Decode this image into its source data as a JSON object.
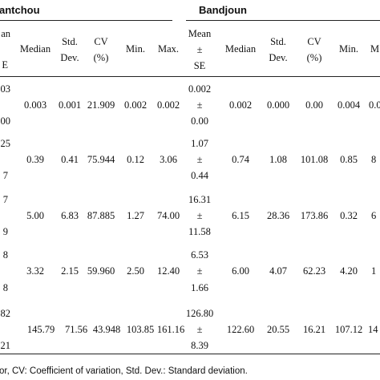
{
  "groups": {
    "left": "antchou",
    "right": "Bandjoun"
  },
  "headers": {
    "left_mean_top": "an",
    "left_mean_bottom": "E",
    "left_median": "Median",
    "left_std_top": "Std.",
    "left_std_bottom": "Dev.",
    "left_cv_top": "CV",
    "left_cv_bottom": "(%)",
    "left_min": "Min.",
    "left_max": "Max.",
    "right_mean_top": "Mean",
    "right_mean_mid": "±",
    "right_mean_bottom": "SE",
    "right_median": "Median",
    "right_std_top": "Std.",
    "right_std_bottom": "Dev.",
    "right_cv_top": "CV",
    "right_cv_bottom": "(%)",
    "right_min": "Min.",
    "right_max": "M"
  },
  "rows": [
    {
      "left_mean_top": "03",
      "left_mean_bottom": "00",
      "left_median": "0.003",
      "left_std": "0.001",
      "left_cv": "21.909",
      "left_min": "0.002",
      "left_max": "0.002",
      "right_mean_top": "0.002",
      "right_mean_mid": "±",
      "right_mean_bottom": "0.00",
      "right_median": "0.002",
      "right_std": "0.000",
      "right_cv": "0.00",
      "right_min": "0.004",
      "right_max": "0.0"
    },
    {
      "left_mean_top": "25",
      "left_mean_bottom": "7",
      "left_median": "0.39",
      "left_std": "0.41",
      "left_cv": "75.944",
      "left_min": "0.12",
      "left_max": "3.06",
      "right_mean_top": "1.07",
      "right_mean_mid": "±",
      "right_mean_bottom": "0.44",
      "right_median": "0.74",
      "right_std": "1.08",
      "right_cv": "101.08",
      "right_min": "0.85",
      "right_max": "8"
    },
    {
      "left_mean_top": "7",
      "left_mean_bottom": "9",
      "left_median": "5.00",
      "left_std": "6.83",
      "left_cv": "87.885",
      "left_min": "1.27",
      "left_max": "74.00",
      "right_mean_top": "16.31",
      "right_mean_mid": "±",
      "right_mean_bottom": "11.58",
      "right_median": "6.15",
      "right_std": "28.36",
      "right_cv": "173.86",
      "right_min": "0.32",
      "right_max": "6"
    },
    {
      "left_mean_top": "8",
      "left_mean_bottom": "8",
      "left_median": "3.32",
      "left_std": "2.15",
      "left_cv": "59.960",
      "left_min": "2.50",
      "left_max": "12.40",
      "right_mean_top": "6.53",
      "right_mean_mid": "±",
      "right_mean_bottom": "1.66",
      "right_median": "6.00",
      "right_std": "4.07",
      "right_cv": "62.23",
      "right_min": "4.20",
      "right_max": "1"
    },
    {
      "left_mean_top": "82",
      "left_mean_bottom": "21",
      "left_median": "145.79",
      "left_std": "71.56",
      "left_cv": "43.948",
      "left_min": "103.85",
      "left_max": "161.16",
      "right_mean_top": "126.80",
      "right_mean_mid": "±",
      "right_mean_bottom": "8.39",
      "right_median": "122.60",
      "right_std": "20.55",
      "right_cv": "16.21",
      "right_min": "107.12",
      "right_max": "14"
    }
  ],
  "footer": "or, CV: Coefficient of variation, Std. Dev.: Standard deviation."
}
